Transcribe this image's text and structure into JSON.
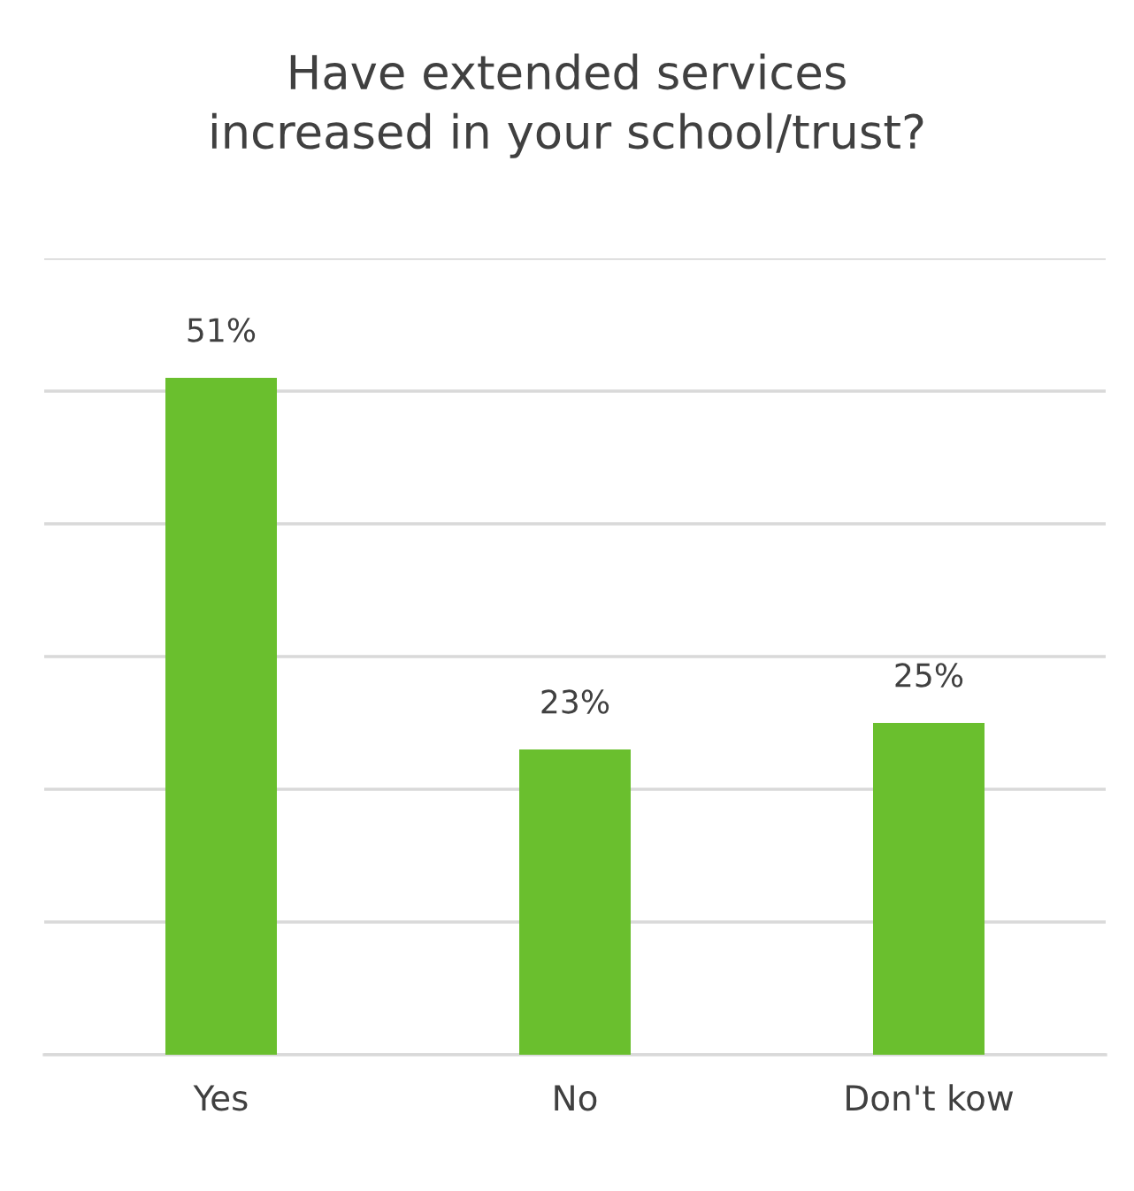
{
  "chart_data": {
    "type": "bar",
    "title": "Have extended services\nincreased in your school/trust?",
    "categories": [
      "Yes",
      "No",
      "Don't kow"
    ],
    "values": [
      51,
      23,
      25
    ],
    "color": "#6abf2e",
    "value_labels": [
      "51%",
      "23%",
      "25%"
    ],
    "ylim": [
      0,
      60
    ],
    "yticks": [
      {
        "value": 0,
        "label": null
      },
      {
        "value": 10,
        "label": null
      },
      {
        "value": 20,
        "label": null
      },
      {
        "value": 30,
        "label": null
      },
      {
        "value": 40,
        "label": null
      },
      {
        "value": 50,
        "label": null
      },
      {
        "value": 60,
        "label": null
      }
    ],
    "tick_labels": "x",
    "grid": "y",
    "legend": false
  }
}
